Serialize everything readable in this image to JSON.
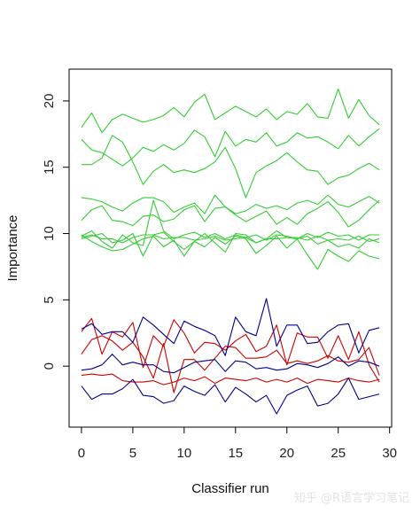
{
  "chart_data": {
    "type": "line",
    "title": "",
    "xlabel": "Classifier run",
    "ylabel": "Importance",
    "xlim": [
      -1.2,
      30.2
    ],
    "ylim": [
      -4.6,
      22.4
    ],
    "x_ticks": [
      0,
      5,
      10,
      15,
      20,
      25,
      30
    ],
    "y_ticks": [
      0,
      5,
      10,
      15,
      20
    ],
    "x_tick_labels": [
      "0",
      "5",
      "10",
      "15",
      "20",
      "25",
      "30"
    ],
    "y_tick_labels": [
      "0",
      "5",
      "10",
      "15",
      "20"
    ],
    "legend": "none",
    "grid": false,
    "colors": {
      "green": "#33cc33",
      "red": "#cc0000",
      "blue": "#00008b",
      "axis": "#000000"
    },
    "x": [
      0,
      1,
      2,
      3,
      4,
      5,
      6,
      7,
      8,
      9,
      10,
      11,
      12,
      13,
      14,
      15,
      16,
      17,
      18,
      19,
      20,
      21,
      22,
      23,
      24,
      25,
      26,
      27,
      28,
      29
    ],
    "series": [
      {
        "color": "#33cc33",
        "values": [
          18.0,
          19.1,
          17.6,
          18.6,
          19.0,
          18.7,
          18.4,
          18.6,
          18.9,
          19.5,
          18.8,
          19.9,
          20.5,
          18.6,
          19.1,
          19.6,
          19.2,
          18.8,
          19.4,
          18.6,
          19.2,
          19.0,
          19.8,
          18.8,
          18.7,
          20.9,
          18.7,
          20.1,
          18.9,
          18.2
        ]
      },
      {
        "color": "#33cc33",
        "values": [
          17.1,
          16.3,
          16.1,
          15.6,
          15.1,
          15.7,
          16.5,
          16.2,
          16.7,
          16.3,
          16.8,
          17.8,
          17.3,
          15.8,
          17.7,
          16.6,
          17.1,
          16.9,
          17.6,
          16.6,
          16.9,
          17.6,
          17.2,
          17.3,
          16.9,
          16.4,
          17.4,
          16.6,
          17.3,
          17.9
        ]
      },
      {
        "color": "#33cc33",
        "values": [
          15.2,
          15.2,
          15.7,
          17.4,
          16.9,
          15.4,
          13.7,
          14.7,
          15.2,
          14.6,
          14.8,
          14.6,
          14.9,
          15.4,
          16.5,
          14.9,
          12.7,
          14.6,
          15.1,
          15.5,
          16.1,
          15.4,
          14.8,
          14.7,
          13.7,
          14.2,
          14.4,
          14.9,
          15.3,
          14.8
        ]
      },
      {
        "color": "#33cc33",
        "values": [
          12.7,
          12.6,
          12.4,
          12.0,
          11.7,
          12.3,
          12.7,
          12.7,
          12.4,
          11.6,
          12.0,
          12.3,
          11.5,
          12.9,
          12.0,
          11.5,
          11.7,
          12.2,
          11.9,
          12.1,
          11.8,
          12.3,
          12.5,
          12.2,
          12.9,
          12.2,
          12.0,
          12.4,
          12.8,
          12.3
        ]
      },
      {
        "color": "#33cc33",
        "values": [
          11.0,
          11.8,
          12.1,
          11.0,
          10.9,
          10.6,
          11.3,
          11.4,
          10.9,
          11.1,
          11.8,
          12.1,
          10.9,
          11.9,
          12.0,
          11.4,
          10.9,
          11.3,
          11.7,
          10.7,
          11.2,
          10.7,
          11.5,
          11.9,
          12.4,
          11.6,
          10.5,
          11.0,
          11.8,
          12.5
        ]
      },
      {
        "color": "#33cc33",
        "values": [
          9.8,
          10.2,
          9.4,
          8.9,
          9.9,
          9.3,
          9.1,
          12.5,
          10.2,
          9.6,
          9.9,
          10.1,
          9.7,
          10.0,
          9.6,
          9.9,
          9.7,
          9.9,
          9.5,
          9.9,
          9.8,
          9.6,
          10.0,
          9.7,
          10.1,
          9.8,
          9.9,
          9.5,
          9.9,
          9.9
        ]
      },
      {
        "color": "#33cc33",
        "values": [
          9.6,
          9.8,
          10.0,
          9.3,
          9.5,
          10.0,
          8.3,
          9.9,
          10.1,
          9.4,
          8.8,
          9.4,
          10.0,
          9.3,
          8.6,
          10.0,
          9.9,
          9.3,
          9.6,
          10.2,
          9.7,
          9.6,
          9.8,
          9.2,
          9.5,
          9.0,
          9.2,
          8.9,
          9.6,
          9.3
        ]
      },
      {
        "color": "#33cc33",
        "values": [
          9.9,
          9.4,
          9.0,
          8.7,
          8.8,
          9.2,
          9.6,
          9.8,
          9.0,
          9.5,
          8.3,
          9.4,
          9.0,
          9.7,
          9.2,
          9.8,
          9.6,
          8.5,
          9.1,
          9.8,
          8.9,
          9.6,
          8.4,
          7.3,
          8.8,
          8.3,
          7.9,
          8.7,
          8.3,
          8.1
        ]
      },
      {
        "color": "#33cc33",
        "values": [
          9.7,
          9.9,
          9.6,
          9.6,
          9.3,
          9.7,
          9.9,
          9.9,
          9.6,
          9.7,
          9.7,
          9.5,
          9.6,
          9.8,
          9.5,
          9.6,
          9.7,
          9.3,
          9.6,
          9.6,
          9.7,
          9.7,
          9.5,
          9.8,
          9.5,
          9.6,
          9.5,
          9.8,
          9.4,
          9.6
        ]
      },
      {
        "color": "#cc0000",
        "values": [
          2.6,
          3.6,
          0.9,
          2.6,
          2.2,
          3.3,
          -0.1,
          2.3,
          1.5,
          3.5,
          2.5,
          1.0,
          1.8,
          1.7,
          1.2,
          1.9,
          2.4,
          1.1,
          1.5,
          3.1,
          0.1,
          2.5,
          2.2,
          2.2,
          0.6,
          2.3,
          0.5,
          2.6,
          0.1,
          -1.2
        ]
      },
      {
        "color": "#cc0000",
        "values": [
          0.9,
          2.0,
          2.3,
          1.9,
          1.2,
          1.8,
          0.7,
          -0.9,
          1.7,
          -2.0,
          0.5,
          0.5,
          -0.3,
          0.6,
          1.5,
          1.4,
          0.6,
          0.6,
          0.7,
          1.2,
          0.2,
          0.4,
          0.2,
          0.4,
          0.8,
          0.4,
          0.3,
          0.5,
          1.4,
          -0.7
        ]
      },
      {
        "color": "#cc0000",
        "values": [
          -0.7,
          -0.6,
          -0.7,
          -0.6,
          -1.1,
          -1.2,
          -1.2,
          -1.1,
          -1.4,
          -1.2,
          -0.9,
          -1.1,
          -0.8,
          -1.3,
          -0.9,
          -1.0,
          -1.1,
          -0.9,
          -1.2,
          -1.0,
          -1.2,
          -0.9,
          -1.3,
          -1.0,
          -1.1,
          -1.2,
          -0.9,
          -1.1,
          -1.2,
          -1.0
        ]
      },
      {
        "color": "#00008b",
        "values": [
          2.8,
          3.2,
          2.4,
          2.6,
          2.6,
          1.8,
          3.7,
          3.1,
          2.4,
          1.7,
          3.4,
          3.0,
          2.7,
          2.3,
          0.8,
          3.7,
          2.6,
          2.3,
          5.1,
          1.5,
          3.1,
          3.1,
          1.7,
          1.8,
          2.6,
          3.1,
          3.2,
          1.0,
          2.7,
          2.9
        ]
      },
      {
        "color": "#00008b",
        "values": [
          -0.3,
          -0.2,
          0.1,
          0.9,
          0.1,
          0.3,
          0.1,
          0.1,
          -0.4,
          -0.5,
          -0.1,
          0.3,
          0.4,
          0.5,
          -0.4,
          0.4,
          0.3,
          -0.2,
          -0.1,
          -0.3,
          -0.2,
          0.2,
          0.1,
          -0.1,
          0.2,
          0.7,
          0.0,
          0.4,
          0.3,
          0.0
        ]
      },
      {
        "color": "#00008b",
        "values": [
          -1.5,
          -2.5,
          -2.1,
          -2.1,
          -1.7,
          -1.0,
          -2.2,
          -2.3,
          -2.8,
          -2.6,
          -1.5,
          -1.9,
          -2.2,
          -1.4,
          -2.7,
          -1.6,
          -2.1,
          -2.7,
          -2.2,
          -3.6,
          -2.2,
          -1.8,
          -1.5,
          -3.0,
          -2.8,
          -2.1,
          -0.9,
          -2.5,
          -2.3,
          -2.1
        ]
      }
    ]
  },
  "watermark": {
    "text": "知乎 @R语言学习笔记"
  }
}
